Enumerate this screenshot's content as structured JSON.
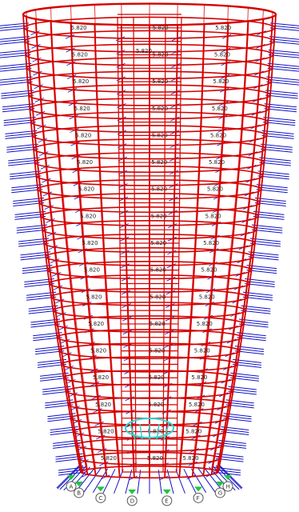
{
  "colors": {
    "background": "#ffffff",
    "frame": "#d40000",
    "load_arrow": "#1010c8",
    "label_text": "#222222",
    "support": "#22c43a",
    "base_link": "#2ad9d9",
    "grid_bubble": "#555555"
  },
  "model": {
    "top_label": "5.820",
    "repeat_label": "5.820",
    "grid_bubbles": [
      "A",
      "B",
      "C",
      "D",
      "E",
      "F",
      "G",
      "H"
    ],
    "support_icon": "fixed-support-icon",
    "arrow_icon": "load-arrow-icon"
  }
}
